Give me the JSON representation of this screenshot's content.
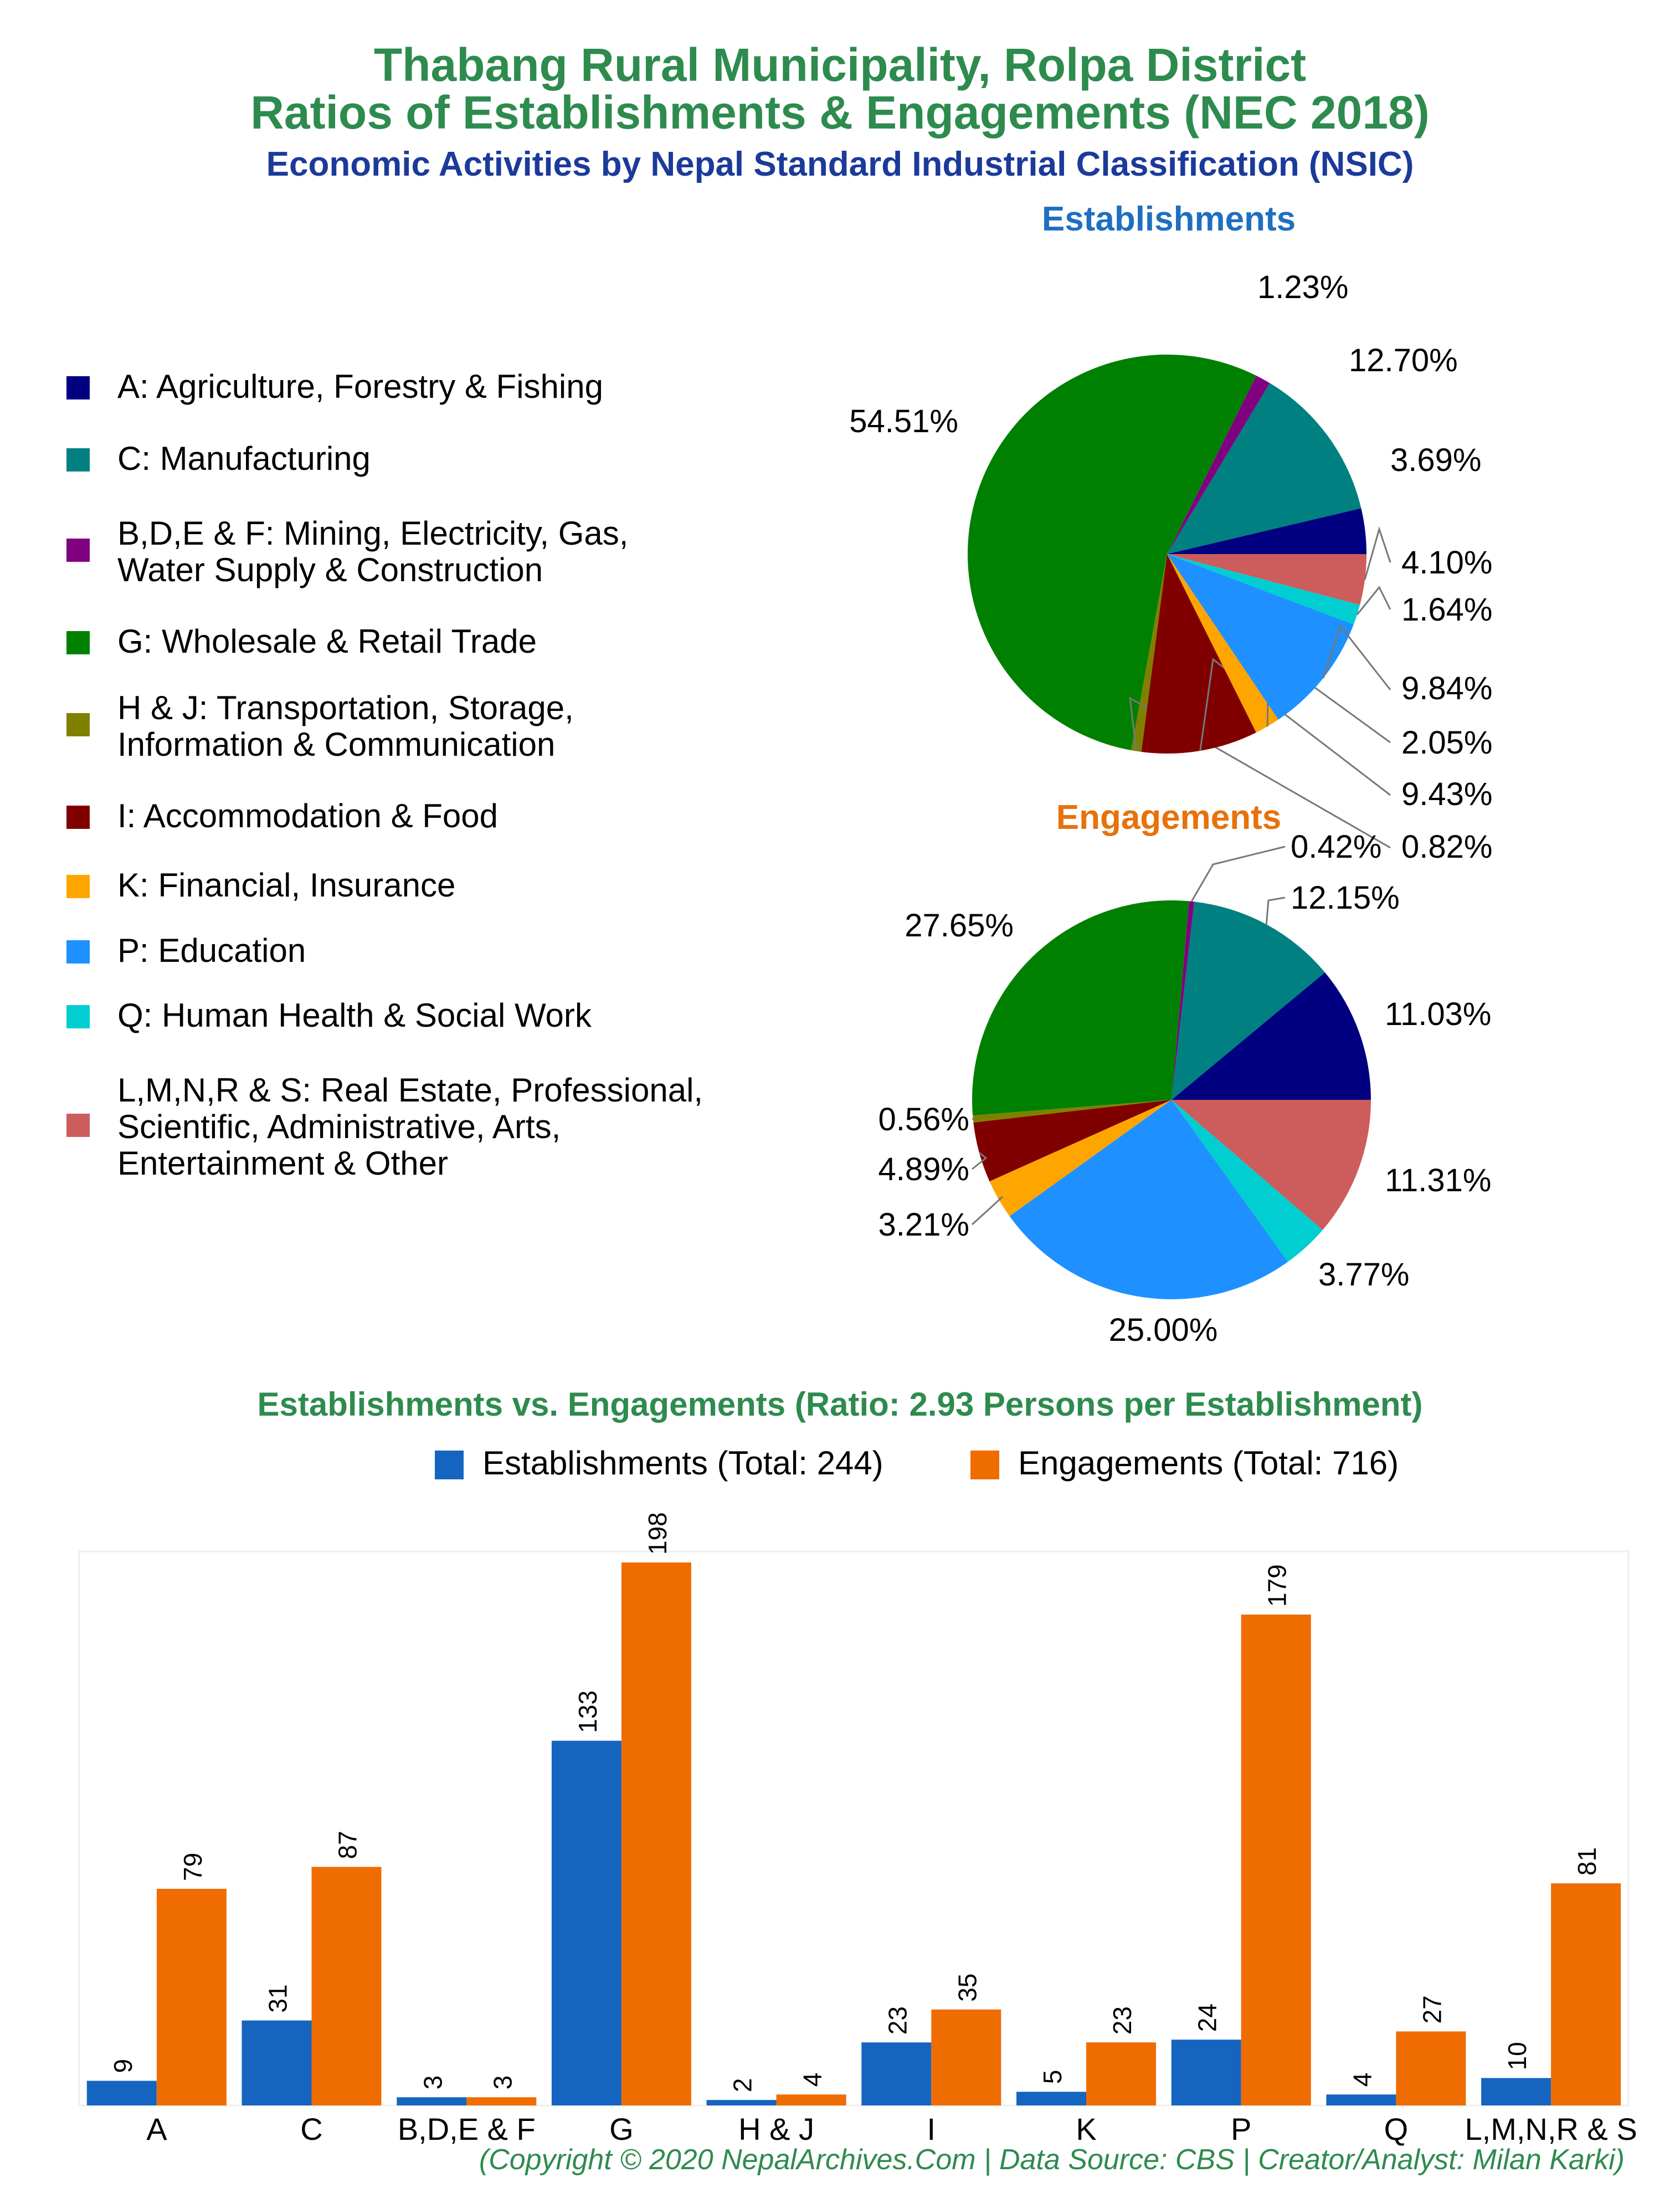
{
  "titles": {
    "line1": "Thabang Rural Municipality, Rolpa District",
    "line2": "Ratios of Establishments & Engagements (NEC 2018)",
    "line3": "Economic Activities by Nepal Standard Industrial Classification (NSIC)"
  },
  "legend": [
    {
      "label": "A: Agriculture, Forestry & Fishing",
      "color": "#000080"
    },
    {
      "label": "C: Manufacturing",
      "color": "#008080"
    },
    {
      "label": "B,D,E & F: Mining, Electricity, Gas,\nWater Supply & Construction",
      "color": "#800080"
    },
    {
      "label": "G: Wholesale & Retail Trade",
      "color": "#008000"
    },
    {
      "label": "H & J: Transportation, Storage,\nInformation & Communication",
      "color": "#808000"
    },
    {
      "label": "I: Accommodation & Food",
      "color": "#800000"
    },
    {
      "label": "K: Financial, Insurance",
      "color": "#FFA500"
    },
    {
      "label": "P: Education",
      "color": "#1E90FF"
    },
    {
      "label": "Q: Human Health & Social Work",
      "color": "#00CED1"
    },
    {
      "label": "L,M,N,R & S: Real Estate, Professional,\nScientific, Administrative, Arts,\nEntertainment & Other",
      "color": "#CD5C5C"
    }
  ],
  "bar_legend": {
    "establishments": "Establishments (Total: 244)",
    "engagements": "Engagements (Total: 716)",
    "establishments_color": "#1565C0",
    "engagements_color": "#EF6C00"
  },
  "copyright": "(Copyright © 2020 NepalArchives.Com | Data Source: CBS | Creator/Analyst: Milan Karki)",
  "chart_data": [
    {
      "type": "pie",
      "title": "Establishments",
      "order": [
        "A",
        "C",
        "B,D,E & F",
        "G",
        "H & J",
        "I",
        "K",
        "P",
        "Q",
        "L,M,N,R & S"
      ],
      "values": [
        3.69,
        12.7,
        1.23,
        54.51,
        0.82,
        9.43,
        2.05,
        9.84,
        1.64,
        4.1
      ],
      "labels": [
        "3.69%",
        "12.70%",
        "1.23%",
        "54.51%",
        "0.82%",
        "9.43%",
        "2.05%",
        "9.84%",
        "1.64%",
        "4.10%"
      ]
    },
    {
      "type": "pie",
      "title": "Engagements",
      "order": [
        "A",
        "C",
        "B,D,E & F",
        "G",
        "H & J",
        "I",
        "K",
        "P",
        "Q",
        "L,M,N,R & S"
      ],
      "values": [
        11.03,
        12.15,
        0.42,
        27.65,
        0.56,
        4.89,
        3.21,
        25.0,
        3.77,
        11.31
      ],
      "labels": [
        "11.03%",
        "12.15%",
        "0.42%",
        "27.65%",
        "0.56%",
        "4.89%",
        "3.21%",
        "25.00%",
        "3.77%",
        "11.31%"
      ]
    },
    {
      "type": "bar",
      "title": "Establishments vs. Engagements (Ratio: 2.93 Persons per Establishment)",
      "categories": [
        "A",
        "C",
        "B,D,E & F",
        "G",
        "H & J",
        "I",
        "K",
        "P",
        "Q",
        "L,M,N,R & S"
      ],
      "series": [
        {
          "name": "Establishments (Total: 244)",
          "values": [
            9,
            31,
            3,
            133,
            2,
            23,
            5,
            24,
            4,
            10
          ]
        },
        {
          "name": "Engagements (Total: 716)",
          "values": [
            79,
            87,
            3,
            198,
            4,
            35,
            23,
            179,
            27,
            81
          ]
        }
      ],
      "ylim": [
        0,
        198
      ]
    }
  ]
}
